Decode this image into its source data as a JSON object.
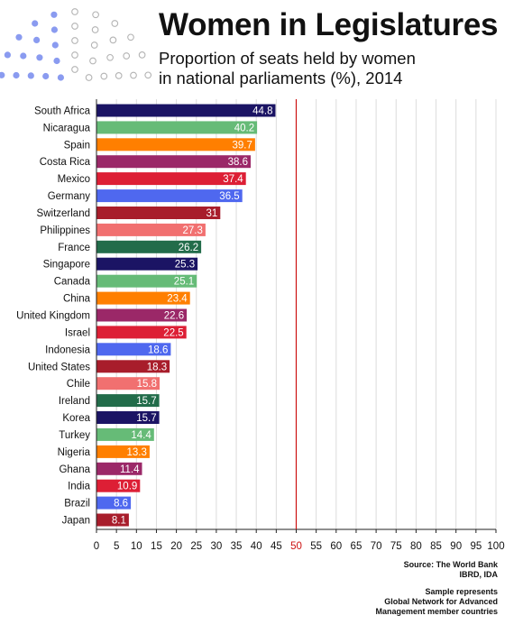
{
  "header": {
    "title": "Women in Legislatures",
    "subtitle_line1": "Proportion of seats held by women",
    "subtitle_line2": "in national parliaments (%), 2014"
  },
  "colors": {
    "reference_line": "#cc1111",
    "palette": [
      "#1b1464",
      "#66bb77",
      "#ff7f00",
      "#9b2868",
      "#dd1f35",
      "#4f68ef",
      "#a81d2b",
      "#f17070",
      "#226c4a"
    ]
  },
  "chart_data": {
    "type": "bar",
    "orientation": "horizontal",
    "categories": [
      "South Africa",
      "Nicaragua",
      "Spain",
      "Costa Rica",
      "Mexico",
      "Germany",
      "Switzerland",
      "Philippines",
      "France",
      "Singapore",
      "Canada",
      "China",
      "United Kingdom",
      "Israel",
      "Indonesia",
      "United States",
      "Chile",
      "Ireland",
      "Korea",
      "Turkey",
      "Nigeria",
      "Ghana",
      "India",
      "Brazil",
      "Japan"
    ],
    "values": [
      44.8,
      40.2,
      39.7,
      38.6,
      37.4,
      36.5,
      31,
      27.3,
      26.2,
      25.3,
      25.1,
      23.4,
      22.6,
      22.5,
      18.6,
      18.3,
      15.8,
      15.7,
      15.7,
      14.4,
      13.3,
      11.4,
      10.9,
      8.6,
      8.1
    ],
    "data_labels": [
      "44.8",
      "40.2",
      "39.7",
      "38.6",
      "37.4",
      "36.5",
      "31",
      "27.3",
      "26.2",
      "25.3",
      "25.1",
      "23.4",
      "22.6",
      "22.5",
      "18.6",
      "18.3",
      "15.8",
      "15.7",
      "15.7",
      "14.4",
      "13.3",
      "11.4",
      "10.9",
      "8.6",
      "8.1"
    ],
    "xlim": [
      0,
      100
    ],
    "xticks": [
      "0",
      "5",
      "10",
      "15",
      "20",
      "25",
      "30",
      "35",
      "40",
      "45",
      "50",
      "55",
      "60",
      "65",
      "70",
      "75",
      "80",
      "85",
      "90",
      "95",
      "100"
    ],
    "reference_line": 50,
    "grid": true
  },
  "source": {
    "line1": "Source: The World Bank",
    "line2": "IBRD, IDA",
    "note1": "Sample represents",
    "note2": "Global Network for Advanced",
    "note3": "Management member countries"
  }
}
